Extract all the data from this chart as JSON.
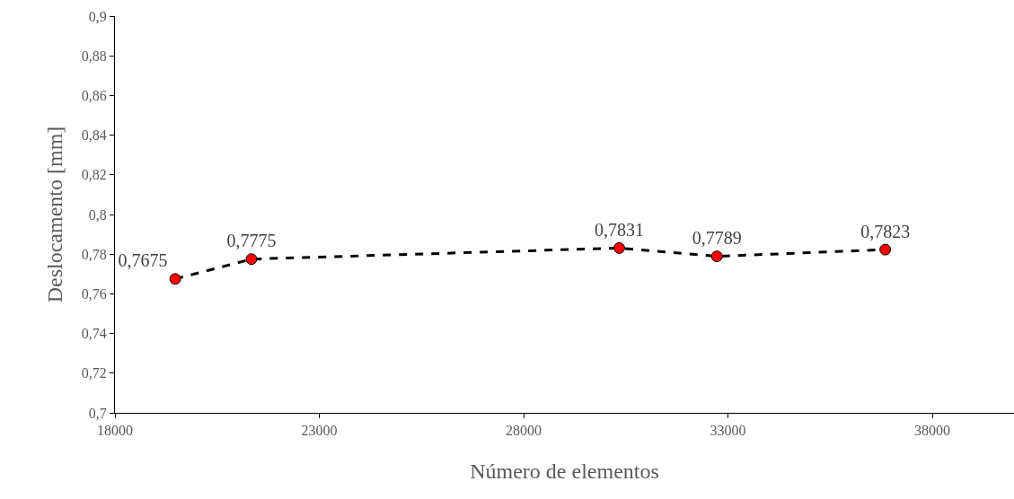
{
  "chart_data": {
    "type": "line",
    "xlabel": "Número de elementos",
    "ylabel": "Deslocamento [mm]",
    "x": [
      19475,
      21340,
      30340,
      32730,
      36850
    ],
    "series": [
      {
        "color": "#000000",
        "colors": [
          "#ff0000",
          "#ff0000",
          "#ff0000",
          "#ff0000",
          "#ff0000"
        ],
        "values": [
          0.7675,
          0.7775,
          0.7831,
          0.7789,
          0.7823
        ],
        "value_labels": [
          "0,7675",
          "0,7775",
          "0,7831",
          "0,7789",
          "0,7823"
        ]
      }
    ],
    "xlim": [
      18000,
      40000
    ],
    "xticks": [
      18000,
      23000,
      28000,
      33000,
      38000
    ],
    "ylim": [
      0.7,
      0.9
    ],
    "yticks": [
      {
        "value": 0.7,
        "label": "0,7"
      },
      {
        "value": 0.72,
        "label": "0,72"
      },
      {
        "value": 0.74,
        "label": "0,74"
      },
      {
        "value": 0.76,
        "label": "0,76"
      },
      {
        "value": 0.78,
        "label": "0,78"
      },
      {
        "value": 0.8,
        "label": "0,8"
      },
      {
        "value": 0.82,
        "label": "0,82"
      },
      {
        "value": 0.84,
        "label": "0,84"
      },
      {
        "value": 0.86,
        "label": "0,86"
      },
      {
        "value": 0.88,
        "label": "0,88"
      },
      {
        "value": 0.9,
        "label": "0,9"
      }
    ],
    "grid": false,
    "legend": false,
    "marker": "circle",
    "line_style": "dashed"
  }
}
